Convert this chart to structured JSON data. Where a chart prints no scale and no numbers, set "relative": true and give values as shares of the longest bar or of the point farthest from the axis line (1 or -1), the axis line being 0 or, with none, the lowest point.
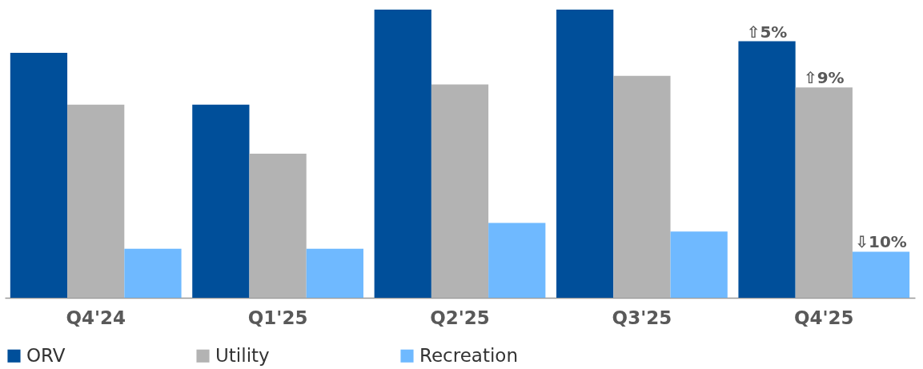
{
  "chart_data": {
    "type": "bar",
    "relative": true,
    "legend": "bottom",
    "categories": [
      "Q4'24",
      "Q1'25",
      "Q2'25",
      "Q3'25",
      "Q4'25"
    ],
    "series": [
      {
        "name": "ORV",
        "color": "#004f9a",
        "values": [
          0.85,
          0.67,
          1.0,
          1.0,
          0.89
        ]
      },
      {
        "name": "Utility",
        "color": "#b3b3b3",
        "values": [
          0.67,
          0.5,
          0.74,
          0.77,
          0.73
        ]
      },
      {
        "name": "Recreation",
        "color": "#6fb9ff",
        "values": [
          0.17,
          0.17,
          0.26,
          0.23,
          0.16
        ]
      }
    ],
    "annotations": [
      "⇧5%",
      "⇧9%",
      "⇩10%"
    ]
  }
}
